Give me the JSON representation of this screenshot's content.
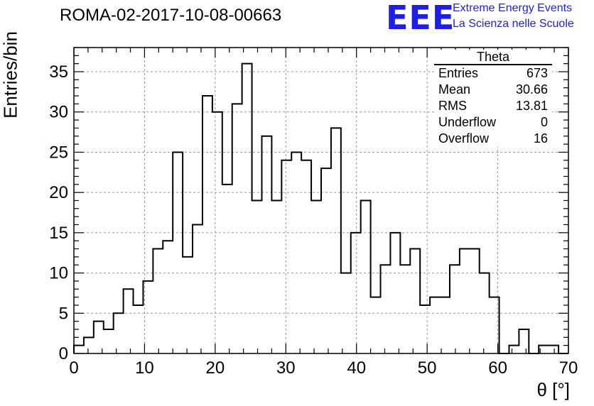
{
  "header": {
    "title": "ROMA-02-2017-10-08-00663",
    "logo_text": "EEE",
    "logo_line1": "Extreme Energy Events",
    "logo_line2": "La Scienza nelle Scuole"
  },
  "stats_box": {
    "title": "Theta",
    "rows": [
      {
        "label": "Entries",
        "value": "673"
      },
      {
        "label": "Mean",
        "value": "30.66"
      },
      {
        "label": "RMS",
        "value": "13.81"
      },
      {
        "label": "Underflow",
        "value": "0"
      },
      {
        "label": "Overflow",
        "value": "16"
      }
    ]
  },
  "colors": {
    "logo": "#1e1ee6",
    "line": "#000000",
    "grid": "#999999"
  },
  "chart_data": {
    "type": "bar",
    "style": "step-histogram",
    "xlabel": "θ [°]",
    "ylabel": "Entries/bin",
    "xlim": [
      0,
      70
    ],
    "ylim": [
      0,
      38
    ],
    "grid": true,
    "bin_width": 1.4,
    "x_ticks": [
      0,
      10,
      20,
      30,
      40,
      50,
      60,
      70
    ],
    "y_ticks": [
      0,
      5,
      10,
      15,
      20,
      25,
      30,
      35
    ],
    "values": [
      1,
      2,
      4,
      3,
      5,
      8,
      6,
      9,
      13,
      14,
      25,
      12,
      16,
      32,
      30,
      21,
      31,
      36,
      19,
      27,
      19,
      24,
      25,
      24,
      19,
      23,
      28,
      10,
      15,
      19,
      7,
      11,
      15,
      11,
      13,
      6,
      7,
      7,
      11,
      13,
      13,
      10,
      7,
      0,
      1,
      3,
      0,
      1,
      1,
      0
    ]
  }
}
